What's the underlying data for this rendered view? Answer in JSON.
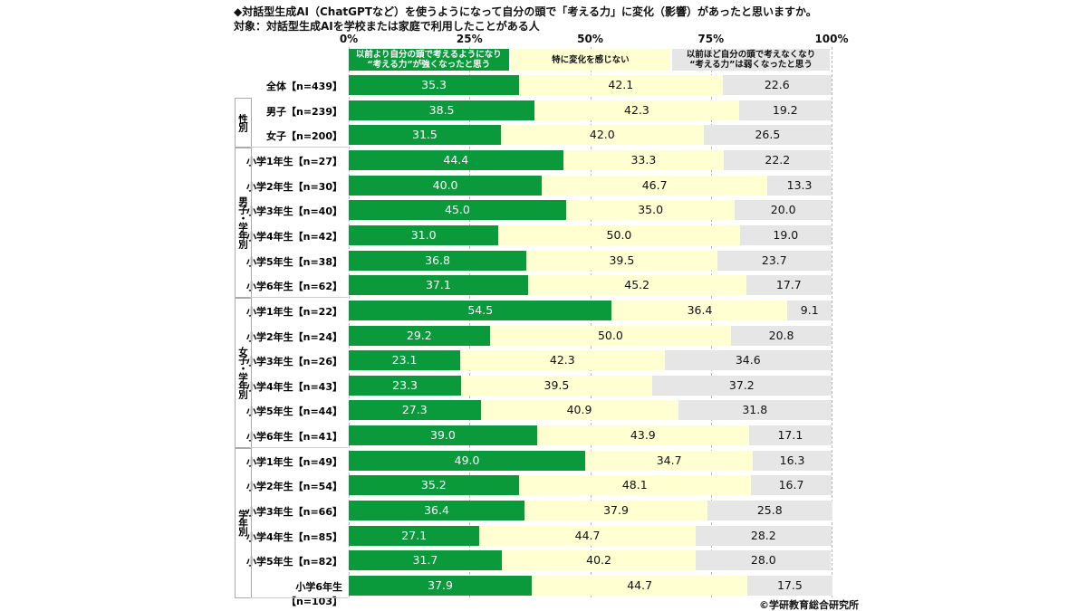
{
  "chart_data": {
    "type": "bar",
    "orientation": "horizontal-stacked-100",
    "title": "◆対話型生成AI（ChatGPTなど）を使うようになって自分の頭で「考える力」に変化（影響）があったと思いますか。",
    "subtitle": "対象：対話型生成AIを学校または家庭で利用したことがある人",
    "xlim": [
      0,
      100
    ],
    "x_ticks": [
      "0%",
      "25%",
      "50%",
      "75%",
      "100%"
    ],
    "grid": true,
    "legend_placement": "top",
    "series": [
      {
        "name": "以前より自分の頭で考えるようになり\n“考える力”が強くなったと思う",
        "color": "#0a9a3c",
        "values": [
          35.3,
          38.5,
          31.5,
          44.4,
          40.0,
          45.0,
          31.0,
          36.8,
          37.1,
          54.5,
          29.2,
          23.1,
          23.3,
          27.3,
          39.0,
          49.0,
          35.2,
          36.4,
          27.1,
          31.7,
          37.9
        ]
      },
      {
        "name": "特に変化を感じない",
        "color": "#ffffd2",
        "values": [
          42.1,
          42.3,
          42.0,
          33.3,
          46.7,
          35.0,
          50.0,
          39.5,
          45.2,
          36.4,
          50.0,
          42.3,
          39.5,
          40.9,
          43.9,
          34.7,
          48.1,
          37.9,
          44.7,
          40.2,
          44.7
        ]
      },
      {
        "name": "以前ほど自分の頭で考えなくなり\n“考える力”は弱くなったと思う",
        "color": "#e6e6e6",
        "values": [
          22.6,
          19.2,
          26.5,
          22.2,
          13.3,
          20.0,
          19.0,
          23.7,
          17.7,
          9.1,
          20.8,
          34.6,
          37.2,
          31.8,
          17.1,
          16.3,
          16.7,
          25.8,
          28.2,
          28.0,
          17.5
        ]
      }
    ],
    "categories": [
      "全体【n=439】",
      "男子【n=239】",
      "女子【n=200】",
      "小学1年生【n=27】",
      "小学2年生【n=30】",
      "小学3年生【n=40】",
      "小学4年生【n=42】",
      "小学5年生【n=38】",
      "小学6年生【n=62】",
      "小学1年生【n=22】",
      "小学2年生【n=24】",
      "小学3年生【n=26】",
      "小学4年生【n=43】",
      "小学5年生【n=44】",
      "小学6年生【n=41】",
      "小学1年生【n=49】",
      "小学2年生【n=54】",
      "小学3年生【n=66】",
      "小学4年生【n=85】",
      "小学5年生【n=82】",
      "小学6年生【n=103】"
    ],
    "groups": [
      {
        "label": "性別",
        "start": 1,
        "end": 2
      },
      {
        "label": "男子・学年別",
        "start": 3,
        "end": 8
      },
      {
        "label": "女子・学年別",
        "start": 9,
        "end": 14
      },
      {
        "label": "学年別",
        "start": 15,
        "end": 20
      }
    ]
  },
  "copyright": "©学研教育総合研究所"
}
